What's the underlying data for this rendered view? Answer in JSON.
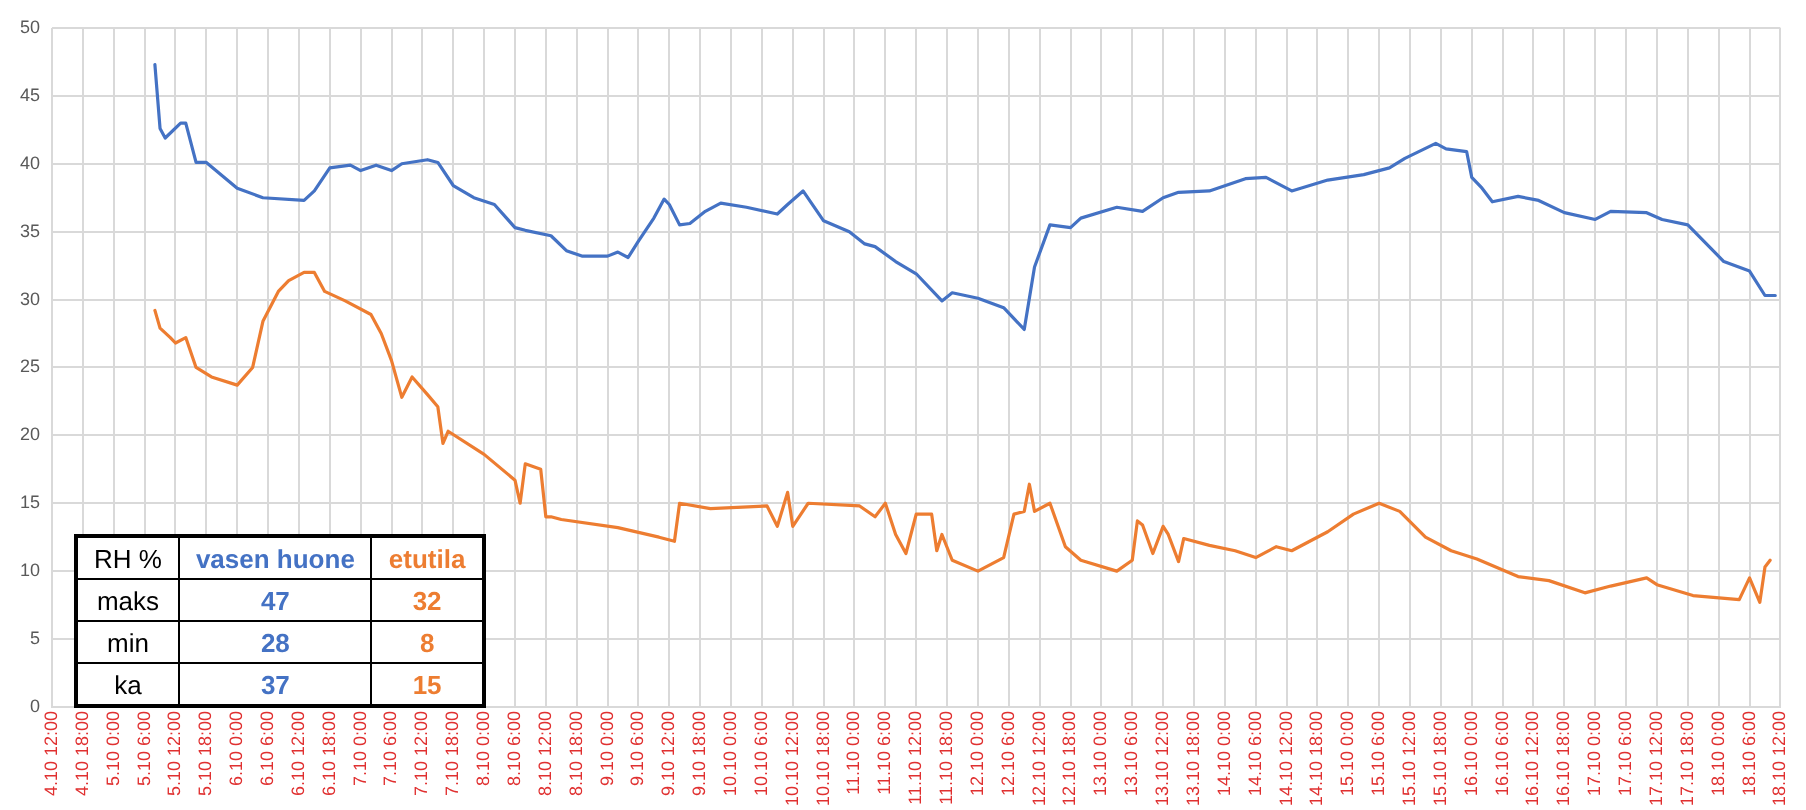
{
  "chart_data": {
    "type": "line",
    "xlim": [
      "--10-04T12:00",
      "--10-18T12:00"
    ],
    "ylim": [
      0,
      50
    ],
    "yticks": [
      0,
      5,
      10,
      15,
      20,
      25,
      30,
      35,
      40,
      45,
      50
    ],
    "xticks": [
      {
        "value": "--10-04T12:00",
        "label": "4.10 12:00"
      },
      {
        "value": "--10-04T18:00",
        "label": "4.10 18:00"
      },
      {
        "value": "--10-05T00:00",
        "label": "5.10 0:00"
      },
      {
        "value": "--10-05T06:00",
        "label": "5.10 6:00"
      },
      {
        "value": "--10-05T12:00",
        "label": "5.10 12:00"
      },
      {
        "value": "--10-05T18:00",
        "label": "5.10 18:00"
      },
      {
        "value": "--10-06T00:00",
        "label": "6.10 0:00"
      },
      {
        "value": "--10-06T06:00",
        "label": "6.10 6:00"
      },
      {
        "value": "--10-06T12:00",
        "label": "6.10 12:00"
      },
      {
        "value": "--10-06T18:00",
        "label": "6.10 18:00"
      },
      {
        "value": "--10-07T00:00",
        "label": "7.10 0:00"
      },
      {
        "value": "--10-07T06:00",
        "label": "7.10 6:00"
      },
      {
        "value": "--10-07T12:00",
        "label": "7.10 12:00"
      },
      {
        "value": "--10-07T18:00",
        "label": "7.10 18:00"
      },
      {
        "value": "--10-08T00:00",
        "label": "8.10 0:00"
      },
      {
        "value": "--10-08T06:00",
        "label": "8.10 6:00"
      },
      {
        "value": "--10-08T12:00",
        "label": "8.10 12:00"
      },
      {
        "value": "--10-08T18:00",
        "label": "8.10 18:00"
      },
      {
        "value": "--10-09T00:00",
        "label": "9.10 0:00"
      },
      {
        "value": "--10-09T06:00",
        "label": "9.10 6:00"
      },
      {
        "value": "--10-09T12:00",
        "label": "9.10 12:00"
      },
      {
        "value": "--10-09T18:00",
        "label": "9.10 18:00"
      },
      {
        "value": "--10-10T00:00",
        "label": "10.10 0:00"
      },
      {
        "value": "--10-10T06:00",
        "label": "10.10 6:00"
      },
      {
        "value": "--10-10T12:00",
        "label": "10.10 12:00"
      },
      {
        "value": "--10-10T18:00",
        "label": "10.10 18:00"
      },
      {
        "value": "--10-11T00:00",
        "label": "11.10 0:00"
      },
      {
        "value": "--10-11T06:00",
        "label": "11.10 6:00"
      },
      {
        "value": "--10-11T12:00",
        "label": "11.10 12:00"
      },
      {
        "value": "--10-11T18:00",
        "label": "11.10 18:00"
      },
      {
        "value": "--10-12T00:00",
        "label": "12.10 0:00"
      },
      {
        "value": "--10-12T06:00",
        "label": "12.10 6:00"
      },
      {
        "value": "--10-12T12:00",
        "label": "12.10 12:00"
      },
      {
        "value": "--10-12T18:00",
        "label": "12.10 18:00"
      },
      {
        "value": "--10-13T00:00",
        "label": "13.10 0:00"
      },
      {
        "value": "--10-13T06:00",
        "label": "13.10 6:00"
      },
      {
        "value": "--10-13T12:00",
        "label": "13.10 12:00"
      },
      {
        "value": "--10-13T18:00",
        "label": "13.10 18:00"
      },
      {
        "value": "--10-14T00:00",
        "label": "14.10 0:00"
      },
      {
        "value": "--10-14T06:00",
        "label": "14.10 6:00"
      },
      {
        "value": "--10-14T12:00",
        "label": "14.10 12:00"
      },
      {
        "value": "--10-14T18:00",
        "label": "14.10 18:00"
      },
      {
        "value": "--10-15T00:00",
        "label": "15.10 0:00"
      },
      {
        "value": "--10-15T06:00",
        "label": "15.10 6:00"
      },
      {
        "value": "--10-15T12:00",
        "label": "15.10 12:00"
      },
      {
        "value": "--10-15T18:00",
        "label": "15.10 18:00"
      },
      {
        "value": "--10-16T00:00",
        "label": "16.10 0:00"
      },
      {
        "value": "--10-16T06:00",
        "label": "16.10 6:00"
      },
      {
        "value": "--10-16T12:00",
        "label": "16.10 12:00"
      },
      {
        "value": "--10-16T18:00",
        "label": "16.10 18:00"
      },
      {
        "value": "--10-17T00:00",
        "label": "17.10 0:00"
      },
      {
        "value": "--10-17T06:00",
        "label": "17.10 6:00"
      },
      {
        "value": "--10-17T12:00",
        "label": "17.10 12:00"
      },
      {
        "value": "--10-17T18:00",
        "label": "17.10 18:00"
      },
      {
        "value": "--10-18T00:00",
        "label": "18.10 0:00"
      },
      {
        "value": "--10-18T06:00",
        "label": "18.10 6:00"
      },
      {
        "value": "--10-18T12:00",
        "label": "18.10 12:00"
      }
    ],
    "grid": true,
    "legend": false,
    "marker": "none",
    "series": [
      {
        "name": "vasen huone",
        "color": "#4472c4",
        "x": [
          "--10-05T08:00",
          "--10-05T09:00",
          "--10-05T10:00",
          "--10-05T13:00",
          "--10-05T14:00",
          "--10-05T16:00",
          "--10-05T18:00",
          "--10-06T00:00",
          "--10-06T05:00",
          "--10-06T13:00",
          "--10-06T15:00",
          "--10-06T18:00",
          "--10-06T22:00",
          "--10-07T00:00",
          "--10-07T03:00",
          "--10-07T06:00",
          "--10-07T08:00",
          "--10-07T13:00",
          "--10-07T15:00",
          "--10-07T18:00",
          "--10-07T22:00",
          "--10-08T02:00",
          "--10-08T06:00",
          "--10-08T08:00",
          "--10-08T13:00",
          "--10-08T16:00",
          "--10-08T19:00",
          "--10-09T00:00",
          "--10-09T02:00",
          "--10-09T04:00",
          "--10-09T06:00",
          "--10-09T09:00",
          "--10-09T11:00",
          "--10-09T12:00",
          "--10-09T14:00",
          "--10-09T16:00",
          "--10-09T19:00",
          "--10-09T22:00",
          "--10-10T03:00",
          "--10-10T09:00",
          "--10-10T11:00",
          "--10-10T14:00",
          "--10-10T18:00",
          "--10-10T23:00",
          "--10-11T02:00",
          "--10-11T04:00",
          "--10-11T08:00",
          "--10-11T12:00",
          "--10-11T17:00",
          "--10-11T19:00",
          "--10-12T00:00",
          "--10-12T05:00",
          "--10-12T09:00",
          "--10-12T11:00",
          "--10-12T14:00",
          "--10-12T18:00",
          "--10-12T20:00",
          "--10-13T03:00",
          "--10-13T08:00",
          "--10-13T12:00",
          "--10-13T15:00",
          "--10-13T21:00",
          "--10-14T04:00",
          "--10-14T08:00",
          "--10-14T13:00",
          "--10-14T20:00",
          "--10-15T03:00",
          "--10-15T08:00",
          "--10-15T11:00",
          "--10-15T17:00",
          "--10-15T19:00",
          "--10-15T23:00",
          "--10-16T00:00",
          "--10-16T02:00",
          "--10-16T04:00",
          "--10-16T09:00",
          "--10-16T13:00",
          "--10-16T18:00",
          "--10-17T00:00",
          "--10-17T03:00",
          "--10-17T10:00",
          "--10-17T13:00",
          "--10-17T18:00",
          "--10-18T01:00",
          "--10-18T06:00",
          "--10-18T09:00",
          "--10-18T11:00"
        ],
        "values": [
          47.3,
          42.6,
          41.9,
          43.0,
          43.0,
          40.1,
          40.1,
          38.2,
          37.5,
          37.3,
          38.0,
          39.7,
          39.9,
          39.5,
          39.9,
          39.5,
          40.0,
          40.3,
          40.1,
          38.4,
          37.5,
          37.0,
          35.3,
          35.1,
          34.7,
          33.6,
          33.2,
          33.2,
          33.5,
          33.1,
          34.3,
          36.0,
          37.4,
          37.0,
          35.5,
          35.6,
          36.5,
          37.1,
          36.8,
          36.3,
          37.0,
          38.0,
          35.8,
          35.0,
          34.1,
          33.9,
          32.8,
          31.9,
          29.9,
          30.5,
          30.1,
          29.4,
          27.8,
          32.4,
          35.5,
          35.3,
          36.0,
          36.8,
          36.5,
          37.5,
          37.9,
          38.0,
          38.9,
          39.0,
          38.0,
          38.8,
          39.2,
          39.7,
          40.4,
          41.5,
          41.1,
          40.9,
          39.0,
          38.2,
          37.2,
          37.6,
          37.3,
          36.4,
          35.9,
          36.5,
          36.4,
          35.9,
          35.5,
          32.8,
          32.1,
          30.3,
          30.3
        ]
      },
      {
        "name": "etutila",
        "color": "#ed7d31",
        "x": [
          "--10-05T08:00",
          "--10-05T09:00",
          "--10-05T11:00",
          "--10-05T12:00",
          "--10-05T14:00",
          "--10-05T16:00",
          "--10-05T19:00",
          "--10-06T00:00",
          "--10-06T03:00",
          "--10-06T05:00",
          "--10-06T08:00",
          "--10-06T10:00",
          "--10-06T13:00",
          "--10-06T15:00",
          "--10-06T17:00",
          "--10-06T21:00",
          "--10-07T02:00",
          "--10-07T04:00",
          "--10-07T06:00",
          "--10-07T08:00",
          "--10-07T10:00",
          "--10-07T13:00",
          "--10-07T15:00",
          "--10-07T16:00",
          "--10-07T17:00",
          "--10-08T00:00",
          "--10-08T06:00",
          "--10-08T07:00",
          "--10-08T08:00",
          "--10-08T11:00",
          "--10-08T12:00",
          "--10-08T13:00",
          "--10-08T15:00",
          "--10-09T02:00",
          "--10-09T10:00",
          "--10-09T13:00",
          "--10-09T14:00",
          "--10-09T20:00",
          "--10-10T07:00",
          "--10-10T09:00",
          "--10-10T11:00",
          "--10-10T12:00",
          "--10-10T15:00",
          "--10-11T01:00",
          "--10-11T04:00",
          "--10-11T06:00",
          "--10-11T08:00",
          "--10-11T10:00",
          "--10-11T12:00",
          "--10-11T15:00",
          "--10-11T16:00",
          "--10-11T17:00",
          "--10-11T19:00",
          "--10-12T00:00",
          "--10-12T05:00",
          "--10-12T07:00",
          "--10-12T09:00",
          "--10-12T10:00",
          "--10-12T11:00",
          "--10-12T14:00",
          "--10-12T17:00",
          "--10-12T20:00",
          "--10-13T03:00",
          "--10-13T06:00",
          "--10-13T07:00",
          "--10-13T08:00",
          "--10-13T10:00",
          "--10-13T12:00",
          "--10-13T13:00",
          "--10-13T15:00",
          "--10-13T16:00",
          "--10-13T21:00",
          "--10-14T02:00",
          "--10-14T06:00",
          "--10-14T10:00",
          "--10-14T13:00",
          "--10-14T20:00",
          "--10-15T01:00",
          "--10-15T06:00",
          "--10-15T10:00",
          "--10-15T15:00",
          "--10-15T20:00",
          "--10-16T01:00",
          "--10-16T09:00",
          "--10-16T15:00",
          "--10-16T22:00",
          "--10-17T03:00",
          "--10-17T10:00",
          "--10-17T12:00",
          "--10-17T19:00",
          "--10-18T04:00",
          "--10-18T06:00",
          "--10-18T08:00",
          "--10-18T09:00",
          "--10-18T10:00"
        ],
        "values": [
          29.2,
          27.9,
          27.2,
          26.8,
          27.2,
          25.0,
          24.3,
          23.7,
          25.0,
          28.4,
          30.6,
          31.4,
          32.0,
          32.0,
          30.6,
          29.9,
          28.9,
          27.5,
          25.5,
          22.8,
          24.3,
          23.0,
          22.1,
          19.4,
          20.3,
          18.6,
          16.7,
          15.0,
          17.9,
          17.5,
          14.0,
          14.0,
          13.8,
          13.2,
          12.5,
          12.2,
          15.0,
          14.6,
          14.8,
          13.3,
          15.8,
          13.3,
          15.0,
          14.8,
          14.0,
          15.0,
          12.7,
          11.3,
          14.2,
          14.2,
          11.5,
          12.7,
          10.8,
          10.0,
          11.0,
          14.2,
          14.4,
          16.4,
          14.4,
          15.0,
          11.8,
          10.8,
          10.0,
          10.8,
          13.7,
          13.4,
          11.3,
          13.3,
          12.7,
          10.7,
          12.4,
          11.9,
          11.5,
          11.0,
          11.8,
          11.5,
          12.9,
          14.2,
          15.0,
          14.4,
          12.5,
          11.5,
          10.9,
          9.6,
          9.3,
          8.4,
          8.9,
          9.5,
          9.0,
          8.2,
          7.9,
          9.5,
          7.7,
          10.3,
          10.8
        ]
      }
    ],
    "annotations": [
      "RH %",
      "maks",
      "47",
      "32",
      "min",
      "28",
      "8",
      "ka",
      "37",
      "15"
    ]
  }
}
